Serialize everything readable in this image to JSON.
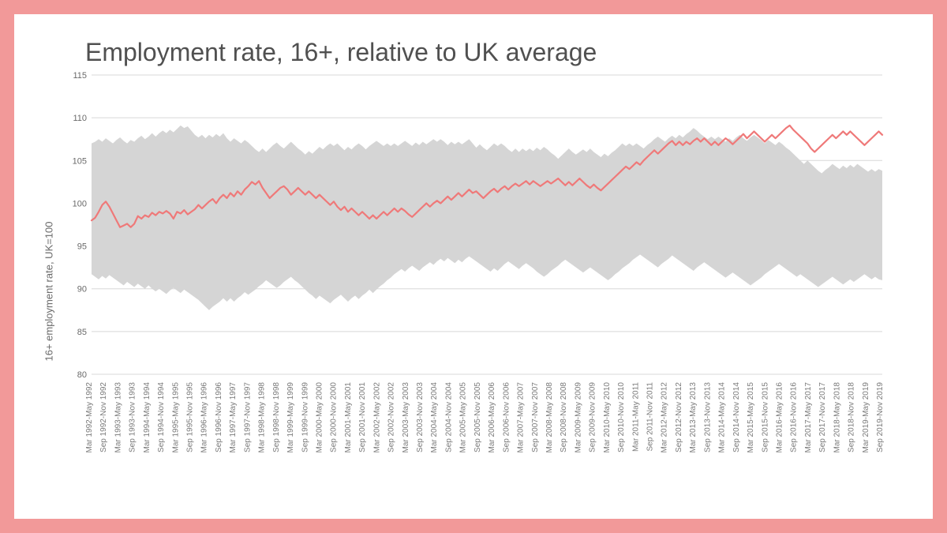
{
  "chart": {
    "type": "line-with-band",
    "title": "Employment rate, 16+, relative to UK average",
    "ylabel": "16+ employment rate, UK=100",
    "title_fontsize": 32,
    "title_color": "#505050",
    "label_fontsize": 13,
    "tick_fontsize": 11,
    "xtick_fontsize": 10,
    "background_color": "#ffffff",
    "frame_color": "#f29999",
    "grid_color": "#d8d8d8",
    "band_color": "#d5d5d5",
    "line_color": "#ef7979",
    "line_width": 2.2,
    "ylim": [
      80,
      115
    ],
    "ytick_step": 5,
    "yticks": [
      80,
      85,
      90,
      95,
      100,
      105,
      110,
      115
    ],
    "xlabels": [
      "Mar 1992-May 1992",
      "Sep 1992-Nov 1992",
      "Mar 1993-May 1993",
      "Sep 1993-Nov 1993",
      "Mar 1994-May 1994",
      "Sep 1994-Nov 1994",
      "Mar 1995-May 1995",
      "Sep 1995-Nov 1995",
      "Mar 1996-May 1996",
      "Sep 1996-Nov 1996",
      "Mar 1997-May 1997",
      "Sep 1997-Nov 1997",
      "Mar 1998-May 1998",
      "Sep 1998-Nov 1998",
      "Mar 1999-May 1999",
      "Sep 1999-Nov 1999",
      "Mar 2000-May 2000",
      "Sep 2000-Nov 2000",
      "Mar 2001-May 2001",
      "Sep 2001-Nov 2001",
      "Mar 2002-May 2002",
      "Sep 2002-Nov 2002",
      "Mar 2003-May 2003",
      "Sep 2003-Nov 2003",
      "Mar 2004-May 2004",
      "Sep 2004-Nov 2004",
      "Mar 2005-May 2005",
      "Sep 2005-Nov 2005",
      "Mar 2006-May 2006",
      "Sep 2006-Nov 2006",
      "Mar 2007-May 2007",
      "Sep 2007-Nov 2007",
      "Mar 2008-May 2008",
      "Sep 2008-Nov 2008",
      "Mar 2009-May 2009",
      "Sep 2009-Nov 2009",
      "Mar 2010-May 2010",
      "Sep 2010-Nov 2010",
      "Mar 2011-May 2011",
      "Sep 2011-Nov 2011",
      "Mar 2012-May 2012",
      "Sep 2012-Nov 2012",
      "Mar 2013-May 2013",
      "Sep 2013-Nov 2013",
      "Mar 2014-May 2014",
      "Sep 2014-Nov 2014",
      "Mar 2015-May 2015",
      "Sep 2015-Nov 2015",
      "Mar 2016-May 2016",
      "Sep 2016-Nov 2016",
      "Mar 2017-May 2017",
      "Sep 2017-Nov 2017",
      "Mar 2018-May 2018",
      "Sep 2018-Nov 2018",
      "Mar 2019-May 2019",
      "Sep 2019-Nov 2019"
    ],
    "line_values": [
      98.0,
      98.3,
      99.0,
      99.8,
      100.2,
      99.6,
      98.8,
      98.0,
      97.2,
      97.4,
      97.6,
      97.2,
      97.6,
      98.5,
      98.2,
      98.6,
      98.4,
      98.9,
      98.6,
      99.0,
      98.8,
      99.1,
      98.8,
      98.2,
      99.0,
      98.8,
      99.2,
      98.7,
      99.0,
      99.3,
      99.8,
      99.4,
      99.8,
      100.2,
      100.5,
      100.0,
      100.6,
      101.0,
      100.6,
      101.2,
      100.8,
      101.4,
      101.0,
      101.6,
      102.0,
      102.5,
      102.2,
      102.6,
      101.8,
      101.2,
      100.6,
      101.0,
      101.4,
      101.8,
      102.0,
      101.6,
      101.0,
      101.4,
      101.8,
      101.4,
      101.0,
      101.4,
      101.0,
      100.6,
      101.0,
      100.6,
      100.2,
      99.8,
      100.2,
      99.6,
      99.2,
      99.6,
      99.0,
      99.4,
      99.0,
      98.6,
      99.0,
      98.6,
      98.2,
      98.6,
      98.2,
      98.6,
      99.0,
      98.6,
      99.0,
      99.4,
      99.0,
      99.4,
      99.1,
      98.7,
      98.4,
      98.8,
      99.2,
      99.6,
      100.0,
      99.6,
      100.0,
      100.3,
      100.0,
      100.4,
      100.8,
      100.4,
      100.8,
      101.2,
      100.8,
      101.2,
      101.6,
      101.2,
      101.4,
      101.0,
      100.6,
      101.0,
      101.4,
      101.7,
      101.3,
      101.7,
      102.0,
      101.6,
      102.0,
      102.3,
      102.0,
      102.3,
      102.6,
      102.2,
      102.6,
      102.3,
      102.0,
      102.3,
      102.6,
      102.3,
      102.6,
      102.9,
      102.5,
      102.1,
      102.5,
      102.1,
      102.5,
      102.9,
      102.5,
      102.1,
      101.8,
      102.2,
      101.8,
      101.5,
      101.9,
      102.3,
      102.7,
      103.1,
      103.5,
      103.9,
      104.3,
      104.0,
      104.4,
      104.8,
      104.5,
      105.0,
      105.4,
      105.8,
      106.2,
      105.8,
      106.2,
      106.6,
      107.0,
      107.3,
      106.8,
      107.2,
      106.8,
      107.2,
      106.9,
      107.3,
      107.6,
      107.2,
      107.6,
      107.2,
      106.8,
      107.2,
      106.8,
      107.2,
      107.6,
      107.3,
      106.9,
      107.3,
      107.7,
      108.1,
      107.6,
      108.0,
      108.4,
      108.0,
      107.6,
      107.2,
      107.6,
      108.0,
      107.6,
      108.0,
      108.4,
      108.8,
      109.1,
      108.6,
      108.2,
      107.8,
      107.4,
      107.0,
      106.4,
      106.0,
      106.4,
      106.8,
      107.2,
      107.6,
      108.0,
      107.6,
      108.0,
      108.4,
      108.0,
      108.4,
      108.0,
      107.6,
      107.2,
      106.8,
      107.2,
      107.6,
      108.0,
      108.4,
      108.0
    ],
    "band_upper": [
      107.0,
      107.2,
      107.5,
      107.2,
      107.6,
      107.3,
      107.0,
      107.4,
      107.7,
      107.3,
      107.0,
      107.4,
      107.2,
      107.6,
      107.9,
      107.5,
      107.8,
      108.2,
      107.8,
      108.2,
      108.5,
      108.2,
      108.6,
      108.3,
      108.7,
      109.1,
      108.8,
      109.0,
      108.5,
      108.0,
      107.7,
      108.0,
      107.6,
      108.0,
      107.7,
      108.1,
      107.8,
      108.2,
      107.6,
      107.2,
      107.6,
      107.3,
      107.0,
      107.4,
      107.1,
      106.7,
      106.3,
      106.0,
      106.4,
      106.0,
      106.4,
      106.8,
      107.1,
      106.7,
      106.4,
      106.8,
      107.2,
      106.8,
      106.4,
      106.1,
      105.7,
      106.1,
      105.8,
      106.2,
      106.6,
      106.3,
      106.7,
      107.0,
      106.7,
      107.0,
      106.6,
      106.2,
      106.6,
      106.3,
      106.7,
      107.0,
      106.7,
      106.3,
      106.7,
      107.0,
      107.3,
      107.0,
      106.7,
      107.0,
      106.7,
      107.0,
      106.7,
      107.0,
      107.3,
      107.0,
      106.7,
      107.1,
      106.8,
      107.2,
      106.9,
      107.2,
      107.5,
      107.2,
      107.5,
      107.2,
      106.8,
      107.2,
      106.9,
      107.2,
      106.9,
      107.2,
      107.5,
      107.0,
      106.5,
      106.9,
      106.5,
      106.2,
      106.6,
      107.0,
      106.7,
      107.0,
      106.7,
      106.3,
      106.0,
      106.4,
      106.0,
      106.4,
      106.1,
      106.4,
      106.1,
      106.5,
      106.2,
      106.6,
      106.3,
      105.9,
      105.6,
      105.2,
      105.6,
      106.0,
      106.4,
      106.0,
      105.7,
      106.0,
      106.3,
      106.0,
      106.4,
      106.0,
      105.7,
      105.4,
      105.8,
      105.5,
      105.9,
      106.2,
      106.6,
      107.0,
      106.7,
      107.0,
      106.7,
      107.0,
      106.7,
      106.4,
      106.8,
      107.1,
      107.5,
      107.8,
      107.5,
      107.2,
      107.6,
      107.9,
      107.6,
      108.0,
      107.7,
      108.1,
      108.4,
      108.8,
      108.5,
      108.1,
      107.8,
      107.5,
      107.8,
      107.5,
      107.8,
      107.5,
      107.2,
      107.6,
      107.3,
      107.7,
      108.0,
      107.6,
      107.3,
      107.7,
      108.0,
      107.7,
      107.4,
      107.0,
      107.4,
      107.1,
      106.8,
      107.2,
      106.9,
      106.5,
      106.2,
      105.8,
      105.4,
      105.0,
      104.6,
      105.0,
      104.6,
      104.2,
      103.8,
      103.5,
      103.9,
      104.2,
      104.6,
      104.3,
      104.0,
      104.4,
      104.1,
      104.5,
      104.2,
      104.6,
      104.3,
      104.0,
      103.7,
      104.0,
      103.7,
      104.0,
      103.8
    ],
    "band_lower": [
      91.7,
      91.4,
      91.1,
      91.5,
      91.2,
      91.6,
      91.3,
      91.0,
      90.7,
      90.4,
      90.8,
      90.5,
      90.2,
      90.6,
      90.3,
      90.0,
      90.4,
      90.0,
      89.7,
      90.0,
      89.7,
      89.4,
      89.8,
      90.1,
      89.8,
      89.5,
      89.9,
      89.6,
      89.3,
      89.0,
      88.7,
      88.3,
      87.9,
      87.5,
      87.9,
      88.2,
      88.5,
      88.9,
      88.5,
      88.9,
      88.5,
      88.9,
      89.2,
      89.6,
      89.3,
      89.6,
      89.9,
      90.3,
      90.6,
      91.0,
      90.7,
      90.4,
      90.1,
      90.4,
      90.8,
      91.1,
      91.4,
      91.0,
      90.7,
      90.3,
      89.9,
      89.5,
      89.2,
      88.8,
      89.2,
      88.9,
      88.6,
      88.3,
      88.7,
      89.0,
      89.3,
      88.9,
      88.5,
      88.9,
      89.2,
      88.8,
      89.2,
      89.5,
      89.9,
      89.5,
      89.9,
      90.3,
      90.6,
      91.0,
      91.3,
      91.7,
      92.0,
      92.3,
      92.0,
      92.4,
      92.7,
      92.4,
      92.1,
      92.5,
      92.8,
      93.1,
      92.8,
      93.2,
      93.5,
      93.2,
      93.6,
      93.3,
      93.0,
      93.4,
      93.1,
      93.5,
      93.8,
      93.5,
      93.2,
      92.9,
      92.6,
      92.3,
      92.0,
      92.4,
      92.1,
      92.5,
      92.9,
      93.2,
      92.9,
      92.6,
      92.3,
      92.7,
      93.0,
      92.7,
      92.4,
      92.0,
      91.7,
      91.4,
      91.7,
      92.1,
      92.4,
      92.7,
      93.1,
      93.4,
      93.1,
      92.8,
      92.5,
      92.2,
      91.9,
      92.2,
      92.5,
      92.2,
      91.9,
      91.6,
      91.3,
      91.0,
      91.3,
      91.7,
      92.0,
      92.4,
      92.7,
      93.0,
      93.4,
      93.7,
      94.0,
      93.7,
      93.4,
      93.1,
      92.8,
      92.5,
      92.9,
      93.2,
      93.5,
      93.9,
      93.6,
      93.3,
      93.0,
      92.7,
      92.4,
      92.1,
      92.5,
      92.8,
      93.1,
      92.8,
      92.5,
      92.2,
      91.9,
      91.6,
      91.3,
      91.6,
      91.9,
      91.6,
      91.3,
      91.0,
      90.7,
      90.4,
      90.7,
      91.0,
      91.3,
      91.7,
      92.0,
      92.3,
      92.6,
      92.9,
      92.6,
      92.3,
      92.0,
      91.7,
      91.4,
      91.7,
      91.4,
      91.1,
      90.8,
      90.5,
      90.2,
      90.5,
      90.8,
      91.1,
      91.4,
      91.1,
      90.8,
      90.5,
      90.8,
      91.1,
      90.8,
      91.1,
      91.4,
      91.7,
      91.4,
      91.1,
      91.4,
      91.1,
      91.0
    ]
  }
}
